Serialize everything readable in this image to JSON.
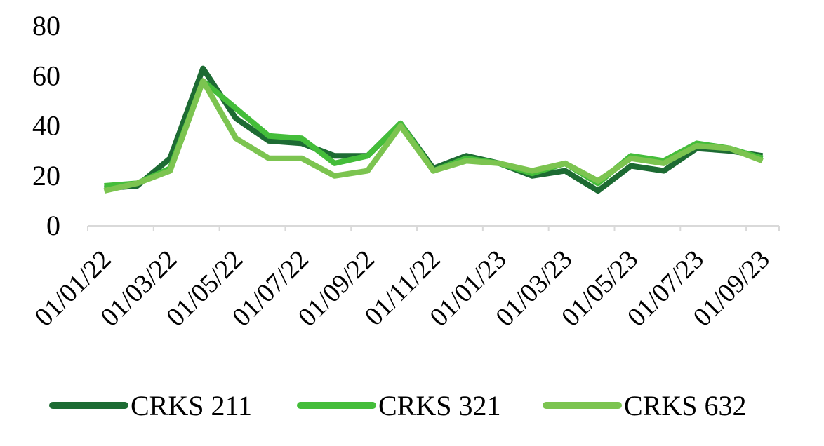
{
  "chart_data": {
    "type": "line",
    "categories": [
      "01/01/22",
      null,
      "01/03/22",
      null,
      "01/05/22",
      null,
      "01/07/22",
      null,
      "01/09/22",
      null,
      "01/11/22",
      null,
      "01/01/23",
      null,
      "01/03/23",
      null,
      "01/05/23",
      null,
      "01/07/23",
      null,
      "01/09/23"
    ],
    "series": [
      {
        "name": "CRKS 211",
        "color": "#1d6b33",
        "values": [
          15,
          16,
          27,
          63,
          43,
          34,
          33,
          28,
          28,
          41,
          23,
          28,
          25,
          20,
          22,
          14,
          24,
          22,
          31,
          30,
          28
        ]
      },
      {
        "name": "CRKS 321",
        "color": "#44bd3a",
        "values": [
          16,
          17,
          23,
          58,
          47,
          36,
          35,
          25,
          28,
          41,
          22,
          27,
          25,
          21,
          25,
          17,
          28,
          26,
          33,
          31,
          27
        ]
      },
      {
        "name": "CRKS 632",
        "color": "#7cc450",
        "values": [
          14,
          17,
          22,
          58,
          35,
          27,
          27,
          20,
          22,
          40,
          22,
          26,
          25,
          22,
          25,
          18,
          27,
          25,
          32,
          31,
          26
        ]
      }
    ],
    "ylim": [
      0,
      80
    ],
    "yticks": [
      0,
      20,
      40,
      60,
      80
    ]
  }
}
